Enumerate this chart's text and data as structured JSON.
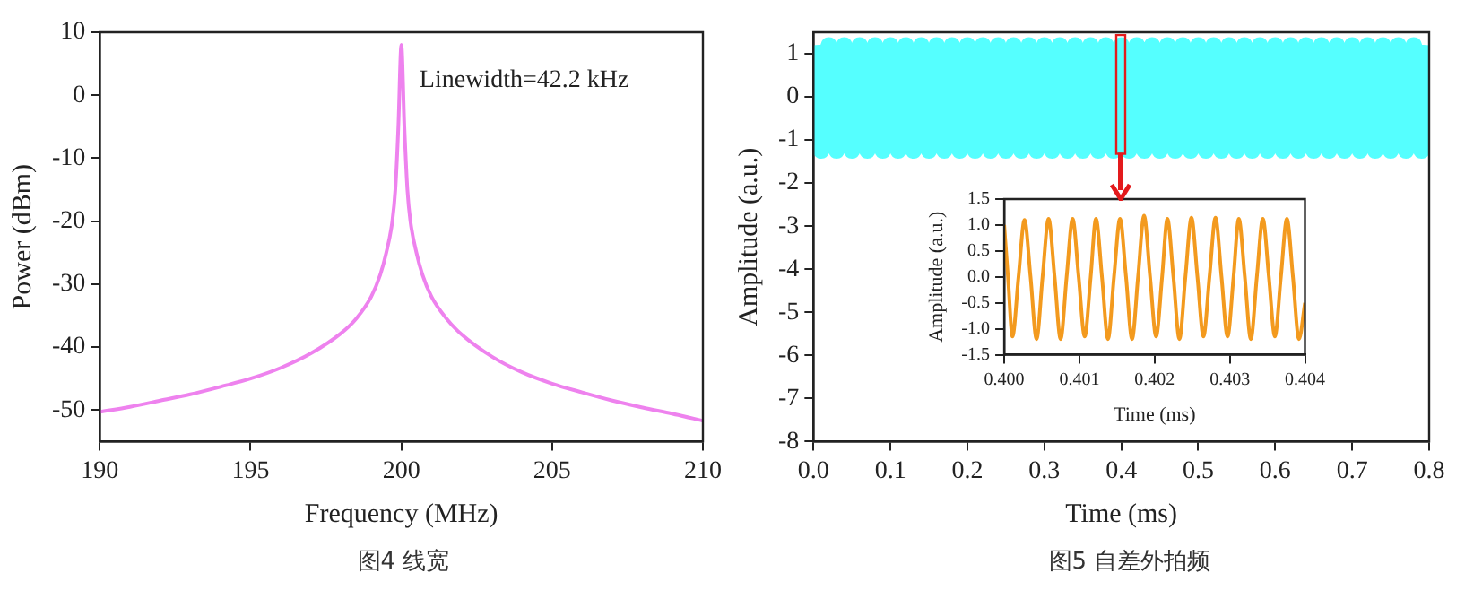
{
  "chart_data": [
    {
      "type": "line",
      "xlabel": "Frequency (MHz)",
      "ylabel": "Power (dBm)",
      "annotations": [
        "Linewidth=42.2 kHz",
        "图4 线宽"
      ],
      "xlim": [
        190,
        210
      ],
      "xticks": [
        190,
        195,
        200,
        205,
        210
      ],
      "ylim": [
        -55,
        10
      ],
      "yticks": [
        -50,
        -40,
        -30,
        -20,
        -10,
        0,
        10
      ],
      "grid": false,
      "legend": false,
      "marker": "none",
      "series": [
        {
          "color": "#ee82ee",
          "x": [
            190,
            191,
            192,
            193,
            194,
            195,
            196,
            197,
            198,
            198.5,
            199,
            199.3,
            199.5,
            199.7,
            199.8,
            199.9,
            200,
            200.1,
            200.2,
            200.3,
            200.5,
            200.7,
            201,
            201.5,
            202,
            203,
            204,
            205,
            206,
            207,
            208,
            209,
            210
          ],
          "values": [
            -50.3,
            -49.5,
            -48.5,
            -47.5,
            -46.3,
            -45,
            -43.3,
            -41,
            -37.8,
            -35.5,
            -32,
            -28.5,
            -25,
            -20,
            -15,
            -5,
            8,
            -5,
            -15,
            -20,
            -25,
            -28.5,
            -32,
            -35.5,
            -38,
            -41.5,
            -44,
            -45.8,
            -47.2,
            -48.5,
            -49.6,
            -50.6,
            -51.7
          ]
        }
      ]
    },
    {
      "type": "line",
      "xlabel": "Time (ms)",
      "ylabel": "Amplitude (a.u.)",
      "annotations": [
        "图5 自差外拍频"
      ],
      "xlim": [
        0,
        0.8
      ],
      "xticks": [
        {
          "value": 0,
          "label": "0.0"
        },
        0.1,
        0.2,
        0.3,
        0.4,
        0.5,
        0.6,
        0.7,
        0.8
      ],
      "ylim": [
        -8,
        1.5
      ],
      "yticks": [
        -8,
        -7,
        -6,
        -5,
        -4,
        -3,
        -2,
        -1,
        0,
        1
      ],
      "grid": false,
      "legend": false,
      "marker": "none",
      "series": [
        {
          "color": "#55ffff",
          "x": [
            0,
            0.01,
            0.02,
            0.03,
            0.04,
            0.05,
            0.06,
            0.07,
            0.08,
            0.09,
            0.1,
            0.11,
            0.12,
            0.13,
            0.14,
            0.15,
            0.16,
            0.17,
            0.18,
            0.19,
            0.2,
            0.21,
            0.22,
            0.23,
            0.24,
            0.25,
            0.26,
            0.27,
            0.28,
            0.29,
            0.3,
            0.31,
            0.32,
            0.33,
            0.34,
            0.35,
            0.36,
            0.37,
            0.38,
            0.39,
            0.4,
            0.41,
            0.42,
            0.43,
            0.44,
            0.45,
            0.46,
            0.47,
            0.48,
            0.49,
            0.5,
            0.51,
            0.52,
            0.53,
            0.54,
            0.55,
            0.56,
            0.57,
            0.58,
            0.59,
            0.6,
            0.61,
            0.62,
            0.63,
            0.64,
            0.65,
            0.66,
            0.67,
            0.68,
            0.69,
            0.7,
            0.71,
            0.72,
            0.73,
            0.74,
            0.75,
            0.76,
            0.77,
            0.78,
            0.79,
            0.8
          ],
          "values": [
            1.2,
            -1.25,
            1.2,
            -1.25,
            1.2,
            -1.25,
            1.2,
            -1.25,
            1.2,
            -1.25,
            1.2,
            -1.25,
            1.2,
            -1.25,
            1.2,
            -1.25,
            1.2,
            -1.25,
            1.2,
            -1.25,
            1.2,
            -1.25,
            1.2,
            -1.25,
            1.2,
            -1.25,
            1.2,
            -1.25,
            1.2,
            -1.25,
            1.2,
            -1.25,
            1.2,
            -1.25,
            1.2,
            -1.25,
            1.2,
            -1.25,
            1.2,
            -1.25,
            1.2,
            -1.25,
            1.2,
            -1.25,
            1.2,
            -1.25,
            1.2,
            -1.25,
            1.2,
            -1.25,
            1.2,
            -1.25,
            1.2,
            -1.25,
            1.2,
            -1.25,
            1.2,
            -1.25,
            1.2,
            -1.25,
            1.2,
            -1.25,
            1.2,
            -1.25,
            1.2,
            -1.25,
            1.2,
            -1.25,
            1.2,
            -1.25,
            1.2,
            -1.25,
            1.2,
            -1.25,
            1.2,
            -1.25,
            1.2,
            -1.25,
            1.2,
            -1.25,
            1.2
          ]
        }
      ]
    },
    {
      "type": "line",
      "xlabel": "Time (ms)",
      "ylabel": "Amplitude (a.u.)",
      "xlim": [
        0.4,
        0.404
      ],
      "xticks": [
        {
          "value": 0.4,
          "label": "0.400"
        },
        {
          "value": 0.401,
          "label": "0.401"
        },
        {
          "value": 0.402,
          "label": "0.402"
        },
        {
          "value": 0.403,
          "label": "0.403"
        },
        {
          "value": 0.404,
          "label": "0.404"
        }
      ],
      "ylim": [
        -1.5,
        1.5
      ],
      "yticks": [
        -1.5,
        {
          "value": -1,
          "label": "-1.0"
        },
        -0.5,
        {
          "value": 0,
          "label": "0.0"
        },
        0.5,
        {
          "value": 1,
          "label": "1.0"
        },
        1.5
      ],
      "grid": false,
      "legend": false,
      "marker": "none",
      "series": [
        {
          "color": "#f39a1e",
          "x": [
            0.4,
            0.40005,
            0.40011,
            0.40019,
            0.40027,
            0.40035,
            0.40043,
            0.40051,
            0.40059,
            0.40067,
            0.40075,
            0.40083,
            0.40091,
            0.40099,
            0.40107,
            0.40115,
            0.40122,
            0.4013,
            0.40138,
            0.40146,
            0.40154,
            0.40162,
            0.4017,
            0.40178,
            0.40186,
            0.40194,
            0.40202,
            0.4021,
            0.40217,
            0.40225,
            0.40233,
            0.40241,
            0.40249,
            0.40257,
            0.40265,
            0.40273,
            0.40281,
            0.40289,
            0.40297,
            0.40305,
            0.40312,
            0.4032,
            0.40328,
            0.40336,
            0.40344,
            0.40352,
            0.4036,
            0.40368,
            0.40376,
            0.40384,
            0.40392,
            0.404
          ],
          "values": [
            1.0,
            0,
            -1.15,
            0,
            1.1,
            0,
            -1.2,
            0,
            1.12,
            0,
            -1.2,
            0,
            1.12,
            0,
            -1.15,
            0,
            1.12,
            0,
            -1.2,
            0,
            1.12,
            0,
            -1.2,
            0,
            1.18,
            0,
            -1.15,
            0,
            1.12,
            0,
            -1.2,
            0,
            1.14,
            0,
            -1.15,
            0,
            1.14,
            0,
            -1.15,
            0,
            1.12,
            0,
            -1.2,
            0,
            1.12,
            0,
            -1.15,
            0,
            1.12,
            0,
            -1.2,
            -0.5
          ]
        }
      ]
    }
  ]
}
